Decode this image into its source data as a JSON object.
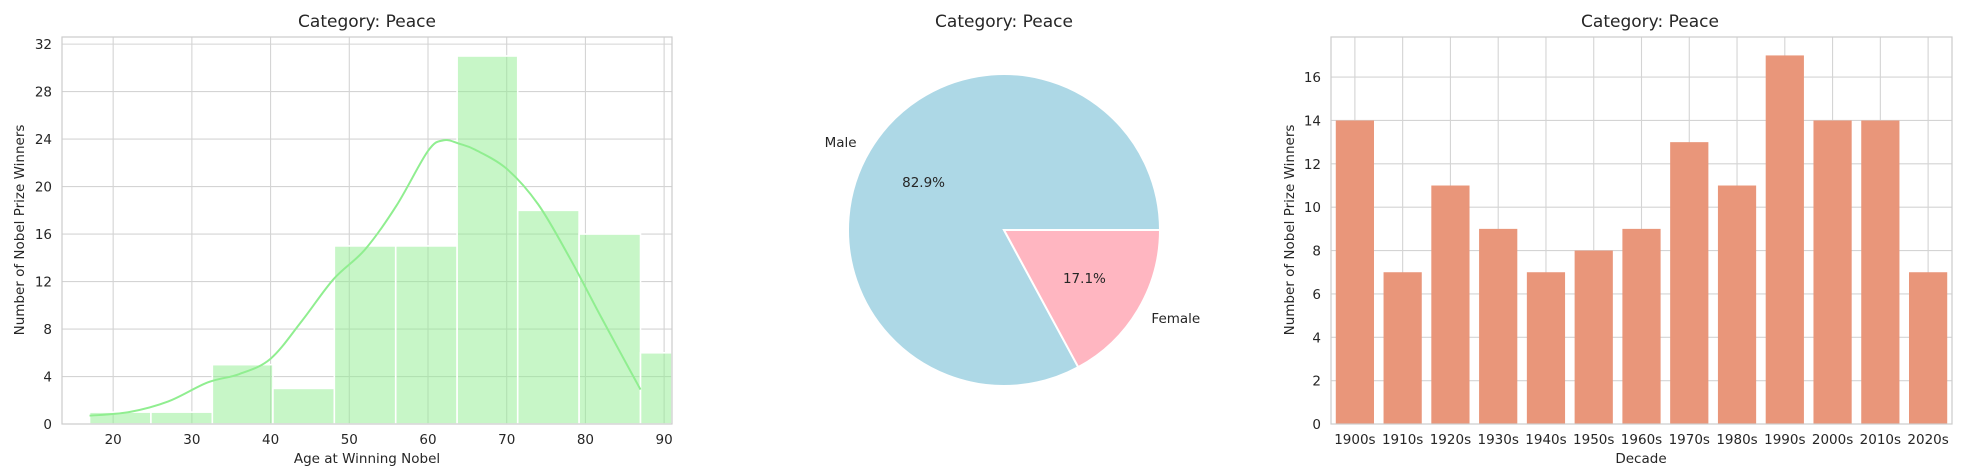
{
  "colors": {
    "hist": "#90ee90",
    "kde": "#90ee90",
    "male": "#add8e6",
    "female": "#ffb6c1",
    "bar": "#e9967a"
  },
  "chart_data": [
    {
      "type": "bar",
      "subtype": "histogram_with_kde",
      "title": "Category: Peace",
      "xlabel": "Age at Winning Nobel",
      "ylabel": "Number of Nobel Prize Winners",
      "bins": [
        {
          "x0": 17,
          "x1": 24.8,
          "count": 1
        },
        {
          "x0": 24.8,
          "x1": 32.6,
          "count": 1
        },
        {
          "x0": 32.6,
          "x1": 40.3,
          "count": 5
        },
        {
          "x0": 40.3,
          "x1": 48.1,
          "count": 3
        },
        {
          "x0": 48.1,
          "x1": 55.9,
          "count": 15
        },
        {
          "x0": 55.9,
          "x1": 63.7,
          "count": 15
        },
        {
          "x0": 63.7,
          "x1": 71.4,
          "count": 31
        },
        {
          "x0": 71.4,
          "x1": 79.2,
          "count": 18
        },
        {
          "x0": 79.2,
          "x1": 87,
          "count": 16
        },
        {
          "x0": 87,
          "x1": 94.8,
          "count": 6
        }
      ],
      "kde": {
        "x": [
          17,
          22,
          27,
          32,
          36,
          40,
          44,
          48,
          52,
          56,
          60,
          62,
          64,
          66,
          70,
          74,
          78,
          82,
          87
        ],
        "y": [
          0.7,
          1.0,
          1.9,
          3.5,
          4.2,
          5.5,
          8.7,
          12.2,
          14.7,
          18.4,
          23.0,
          23.9,
          23.6,
          23.1,
          21.5,
          18.5,
          14.0,
          9.0,
          2.9
        ]
      },
      "xticks": [
        20,
        30,
        40,
        50,
        60,
        70,
        80,
        90
      ],
      "yticks": [
        0,
        4,
        8,
        12,
        16,
        20,
        24,
        28,
        32
      ],
      "xlim": [
        13.5,
        91.0
      ],
      "ylim": [
        0,
        32.6
      ],
      "grid": true
    },
    {
      "type": "pie",
      "title": "Category: Peace",
      "labels": [
        "Male",
        "Female"
      ],
      "values": [
        82.9,
        17.1
      ],
      "pct_labels": [
        "82.9%",
        "17.1%"
      ]
    },
    {
      "type": "bar",
      "title": "Category: Peace",
      "xlabel": "Decade",
      "ylabel": "Number of Nobel Prize Winners",
      "categories": [
        "1900s",
        "1910s",
        "1920s",
        "1930s",
        "1940s",
        "1950s",
        "1960s",
        "1970s",
        "1980s",
        "1990s",
        "2000s",
        "2010s",
        "2020s"
      ],
      "values": [
        14,
        7,
        11,
        9,
        7,
        8,
        9,
        13,
        11,
        17,
        14,
        14,
        7
      ],
      "yticks": [
        0,
        2,
        4,
        6,
        8,
        10,
        12,
        14,
        16
      ],
      "ylim": [
        0,
        17.85
      ],
      "grid": true
    }
  ]
}
